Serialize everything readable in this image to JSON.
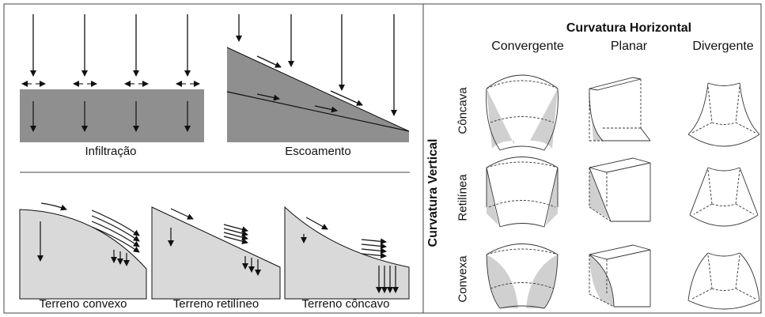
{
  "top_left": {
    "infiltration_label": "Infiltração",
    "runoff_label": "Escoamento"
  },
  "bottom_left": {
    "convex_label": "Terreno convexo",
    "rectilinear_label": "Terreno retilíneo",
    "concave_label": "Terreno côncavo"
  },
  "curvature_grid": {
    "horizontal_title": "Curvatura Horizontal",
    "vertical_title": "Curvatura Vertical",
    "columns": [
      "Convergente",
      "Planar",
      "Divergente"
    ],
    "rows": [
      "Côncava",
      "Retilínea",
      "Convexa"
    ]
  },
  "colors": {
    "dark_fill": "#8f8f8f",
    "light_fill": "#d9d9d9",
    "line": "#111111"
  }
}
